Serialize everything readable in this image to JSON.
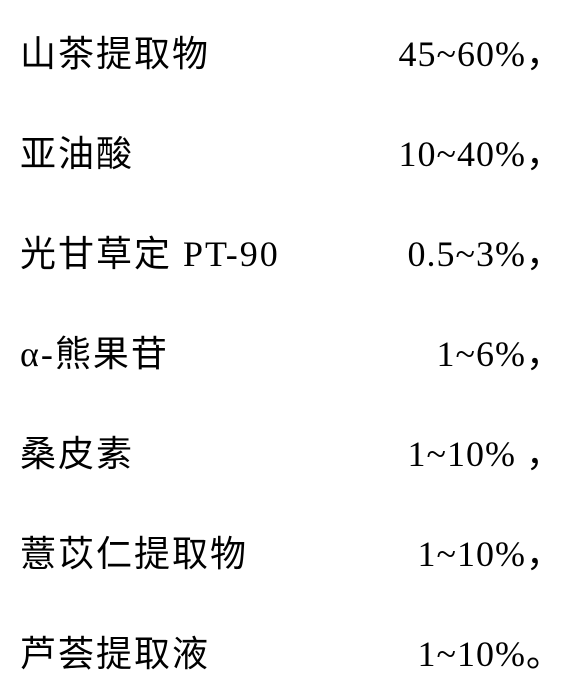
{
  "ingredients": {
    "rows": [
      {
        "name": "山茶提取物",
        "value": "45~60%，"
      },
      {
        "name": "亚油酸",
        "value": "10~40%，"
      },
      {
        "name": "光甘草定 PT-90",
        "value": "0.5~3%，"
      },
      {
        "name": "α-熊果苷",
        "value": "1~6%，"
      },
      {
        "name": "桑皮素",
        "value": "1~10% ，"
      },
      {
        "name": "薏苡仁提取物",
        "value": "1~10%，"
      },
      {
        "name": "芦荟提取液",
        "value": "1~10%。"
      }
    ],
    "font_size": 36,
    "text_color": "#000000",
    "background_color": "#ffffff",
    "row_gap": 48
  }
}
